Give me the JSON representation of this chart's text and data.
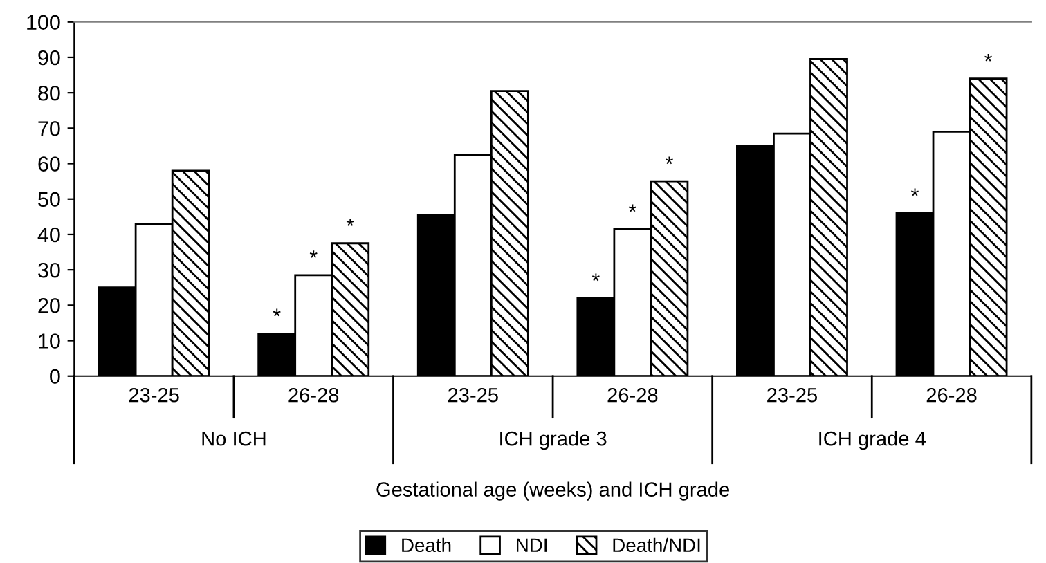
{
  "chart_data": {
    "type": "bar",
    "xlabel": "Gestational age (weeks) and ICH grade",
    "categories": [
      "23-25",
      "26-28",
      "23-25",
      "26-28",
      "23-25",
      "26-28"
    ],
    "annotations": [
      "No ICH",
      "ICH grade 3",
      "ICH grade 4"
    ],
    "series": [
      {
        "name": "Death",
        "color": "#000000",
        "values": [
          25,
          12,
          45.5,
          22,
          65,
          46
        ],
        "value_labels": [
          null,
          "*",
          null,
          "*",
          null,
          "*"
        ]
      },
      {
        "name": "NDI",
        "color": "#ffffff",
        "values": [
          43,
          28.5,
          62.5,
          41.5,
          68.5,
          69
        ],
        "value_labels": [
          null,
          "*",
          null,
          "*",
          null,
          null
        ]
      },
      {
        "name": "Death/NDI",
        "color": "#000000",
        "values": [
          58,
          37.5,
          80.5,
          55,
          89.5,
          84
        ],
        "value_labels": [
          null,
          "*",
          null,
          "*",
          null,
          "*"
        ]
      }
    ],
    "ylim": [
      0,
      100
    ],
    "yticks": [
      0,
      10,
      20,
      30,
      40,
      50,
      60,
      70,
      80,
      90,
      100
    ],
    "grid": false,
    "legend": "bottom"
  }
}
